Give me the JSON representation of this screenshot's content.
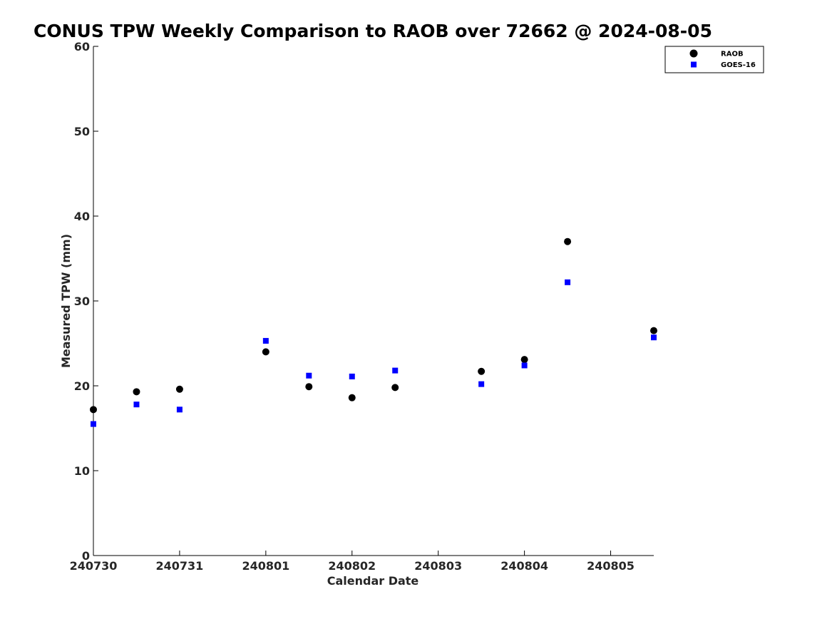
{
  "chart_data": {
    "type": "scatter",
    "title": "CONUS TPW Weekly Comparison to RAOB over 72662 @ 2024-08-05",
    "xlabel": "Calendar Date",
    "ylabel": "Measured TPW (mm)",
    "xlim": [
      240730,
      240806.5
    ],
    "ylim": [
      0,
      60
    ],
    "xticks": [
      {
        "label": "240730"
      },
      {
        "label": "240731"
      },
      {
        "label": "240801"
      },
      {
        "label": "240802"
      },
      {
        "label": "240803"
      },
      {
        "label": "240804"
      },
      {
        "label": "240805"
      }
    ],
    "yticks": [
      "0",
      "10",
      "20",
      "30",
      "40",
      "50",
      "60"
    ],
    "x_units": "days since 2024-07-30",
    "grid": false,
    "legend_position": "top-right",
    "series": [
      {
        "name": "RAOB",
        "color": "#000000",
        "marker": "circle",
        "points": [
          {
            "x": 0.0,
            "y": 17.2
          },
          {
            "x": 0.5,
            "y": 19.3
          },
          {
            "x": 1.0,
            "y": 19.6
          },
          {
            "x": 2.0,
            "y": 24.0
          },
          {
            "x": 2.5,
            "y": 19.9
          },
          {
            "x": 3.0,
            "y": 18.6
          },
          {
            "x": 3.5,
            "y": 19.8
          },
          {
            "x": 4.5,
            "y": 21.7
          },
          {
            "x": 5.0,
            "y": 23.1
          },
          {
            "x": 5.5,
            "y": 37.0
          },
          {
            "x": 6.5,
            "y": 26.5
          }
        ]
      },
      {
        "name": "GOES-16",
        "color": "#0000ff",
        "marker": "square",
        "points": [
          {
            "x": 0.0,
            "y": 15.5
          },
          {
            "x": 0.5,
            "y": 17.8
          },
          {
            "x": 1.0,
            "y": 17.2
          },
          {
            "x": 2.0,
            "y": 25.3
          },
          {
            "x": 2.5,
            "y": 21.2
          },
          {
            "x": 3.0,
            "y": 21.1
          },
          {
            "x": 3.5,
            "y": 21.8
          },
          {
            "x": 4.5,
            "y": 20.2
          },
          {
            "x": 5.0,
            "y": 22.4
          },
          {
            "x": 5.5,
            "y": 32.2
          },
          {
            "x": 6.5,
            "y": 25.7
          }
        ]
      }
    ]
  }
}
